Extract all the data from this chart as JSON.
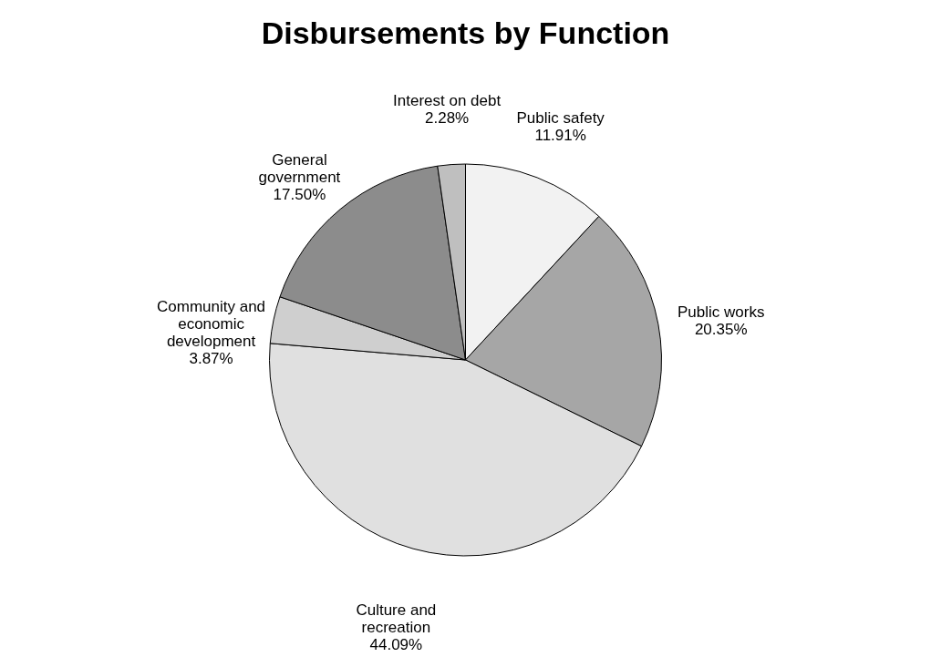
{
  "chart_data": {
    "type": "pie",
    "title": "Disbursements by Function",
    "categories": [
      "Public safety",
      "Public works",
      "Culture and recreation",
      "Community and economic development",
      "General government",
      "Interest on debt"
    ],
    "values": [
      11.91,
      20.35,
      44.09,
      3.87,
      17.5,
      2.28
    ],
    "colors": [
      "#f2f2f2",
      "#a6a6a6",
      "#e0e0e0",
      "#cfcfcf",
      "#8c8c8c",
      "#bfbfbf"
    ],
    "value_labels": [
      "11.91%",
      "20.35%",
      "44.09%",
      "3.87%",
      "17.50%",
      "2.28%"
    ],
    "legend": false
  }
}
